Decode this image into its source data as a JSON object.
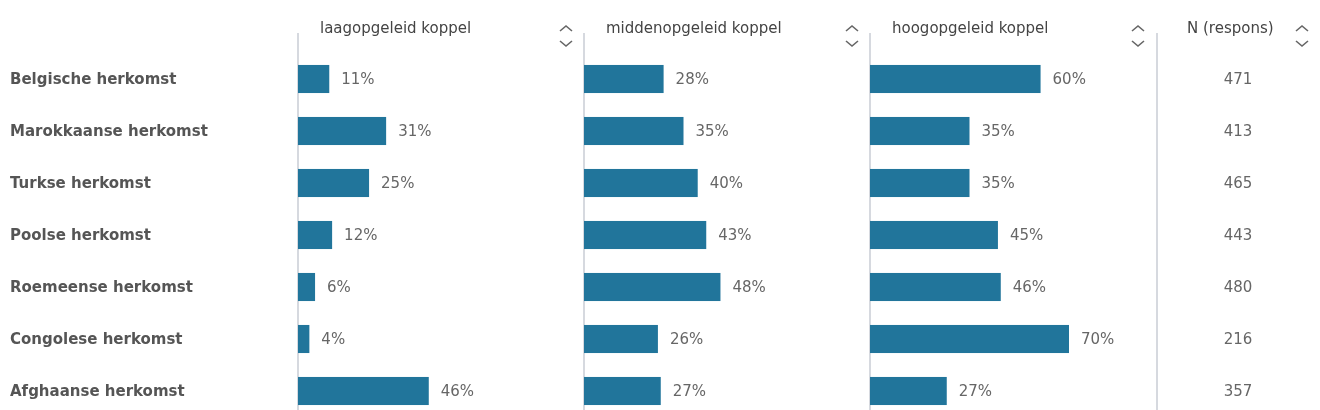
{
  "chart_data": [
    {
      "type": "bar",
      "orientation": "horizontal",
      "title": "laagopgeleid koppel",
      "categories": [
        "Belgische herkomst",
        "Marokkaanse herkomst",
        "Turkse herkomst",
        "Poolse herkomst",
        "Roemeense herkomst",
        "Congolese herkomst",
        "Afghaanse herkomst"
      ],
      "values": [
        11,
        31,
        25,
        12,
        6,
        4,
        46
      ],
      "value_labels": [
        "11%",
        "31%",
        "25%",
        "12%",
        "6%",
        "4%",
        "46%"
      ],
      "color": "#21759b",
      "tick_labels": "y"
    },
    {
      "type": "bar",
      "orientation": "horizontal",
      "title": "middenopgeleid koppel",
      "values": [
        28,
        35,
        40,
        43,
        48,
        26,
        27
      ],
      "value_labels": [
        "28%",
        "35%",
        "40%",
        "43%",
        "48%",
        "26%",
        "27%"
      ],
      "color": "#21759b",
      "tick_labels": false
    },
    {
      "type": "bar",
      "orientation": "horizontal",
      "title": "hoogopgeleid koppel",
      "values": [
        60,
        35,
        35,
        45,
        46,
        70,
        27
      ],
      "value_labels": [
        "60%",
        "35%",
        "35%",
        "45%",
        "46%",
        "70%",
        "27%"
      ],
      "color": "#21759b",
      "tick_labels": false
    },
    {
      "type": "other",
      "title": "N (respons)",
      "values": [
        471,
        413,
        465,
        443,
        480,
        216,
        357
      ],
      "data_labels": true
    }
  ]
}
